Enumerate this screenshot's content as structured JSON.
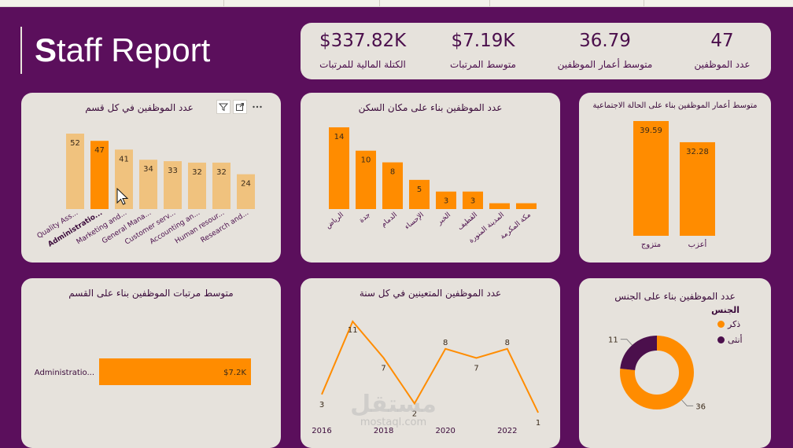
{
  "report": {
    "title_first": "S",
    "title_rest": "taff Report"
  },
  "kpis": [
    {
      "value": "$337.82K",
      "label": "الكتلة المالية للمرتبات"
    },
    {
      "value": "$7.19K",
      "label": "متوسط المرتبات"
    },
    {
      "value": "36.79",
      "label": "متوسط أعمار الموظفين"
    },
    {
      "value": "47",
      "label": "عدد الموظفين"
    }
  ],
  "cards": {
    "dept_count": {
      "title": "عدد الموظفين في كل قسم"
    },
    "city_count": {
      "title": "عدد الموظفين بناء على مكان السكن"
    },
    "marital_age": {
      "title": "متوسط أعمار الموظفين بناء على الحالة الاجتماعية"
    },
    "dept_salary": {
      "title": "متوسط مرتبات الموظفين بناء على القسم"
    },
    "hires_year": {
      "title": "عدد الموظفين المتعينين في كل سنة"
    },
    "gender": {
      "title": "عدد الموظفين بناء على الجنس",
      "legend_title": "الجنس",
      "legend": [
        "ذكر",
        "أنثى"
      ]
    }
  },
  "watermark": {
    "logo": "مستقل",
    "url": "mostaql.com"
  },
  "colors": {
    "bg": "#5b0f5c",
    "card": "#e6e2dc",
    "accent": "#ff8c00",
    "accent_light": "#f0c27e",
    "purple": "#4b0f4c"
  },
  "chart_data": [
    {
      "type": "bar",
      "id": "dept_count",
      "categories": [
        "Quality Ass...",
        "Administratio...",
        "Marketing and...",
        "General Mana...",
        "Customer serv...",
        "Accounting an...",
        "Human resour...",
        "Research and..."
      ],
      "values": [
        52,
        47,
        41,
        34,
        33,
        32,
        32,
        24
      ],
      "highlight_index": 1
    },
    {
      "type": "bar",
      "id": "city_count",
      "categories": [
        "الرياض",
        "جدة",
        "الدمام",
        "الإحساء",
        "الخبر",
        "القطيف",
        "المدينة المنورة",
        "مكة المكرمة"
      ],
      "values": [
        14,
        10,
        8,
        5,
        3,
        3,
        1,
        1
      ],
      "value_labels": [
        "14",
        "10",
        "8",
        "5",
        "3",
        "3",
        "",
        ""
      ]
    },
    {
      "type": "bar",
      "id": "marital_age",
      "categories": [
        "متزوج",
        "أعزب"
      ],
      "values": [
        39.59,
        32.28
      ]
    },
    {
      "type": "bar",
      "id": "dept_salary",
      "orientation": "horizontal",
      "categories": [
        "Administratio..."
      ],
      "values": [
        7.2
      ],
      "value_labels": [
        "$7.2K"
      ]
    },
    {
      "type": "line",
      "id": "hires_year",
      "x": [
        2016,
        2017,
        2018,
        2019,
        2020,
        2021,
        2022,
        2023
      ],
      "values": [
        3,
        11,
        7,
        2,
        8,
        7,
        8,
        1
      ],
      "x_ticks": [
        "2016",
        "2018",
        "2020",
        "2022"
      ]
    },
    {
      "type": "pie",
      "id": "gender",
      "donut": true,
      "categories": [
        "ذكر",
        "أنثى"
      ],
      "values": [
        36,
        11
      ]
    }
  ]
}
